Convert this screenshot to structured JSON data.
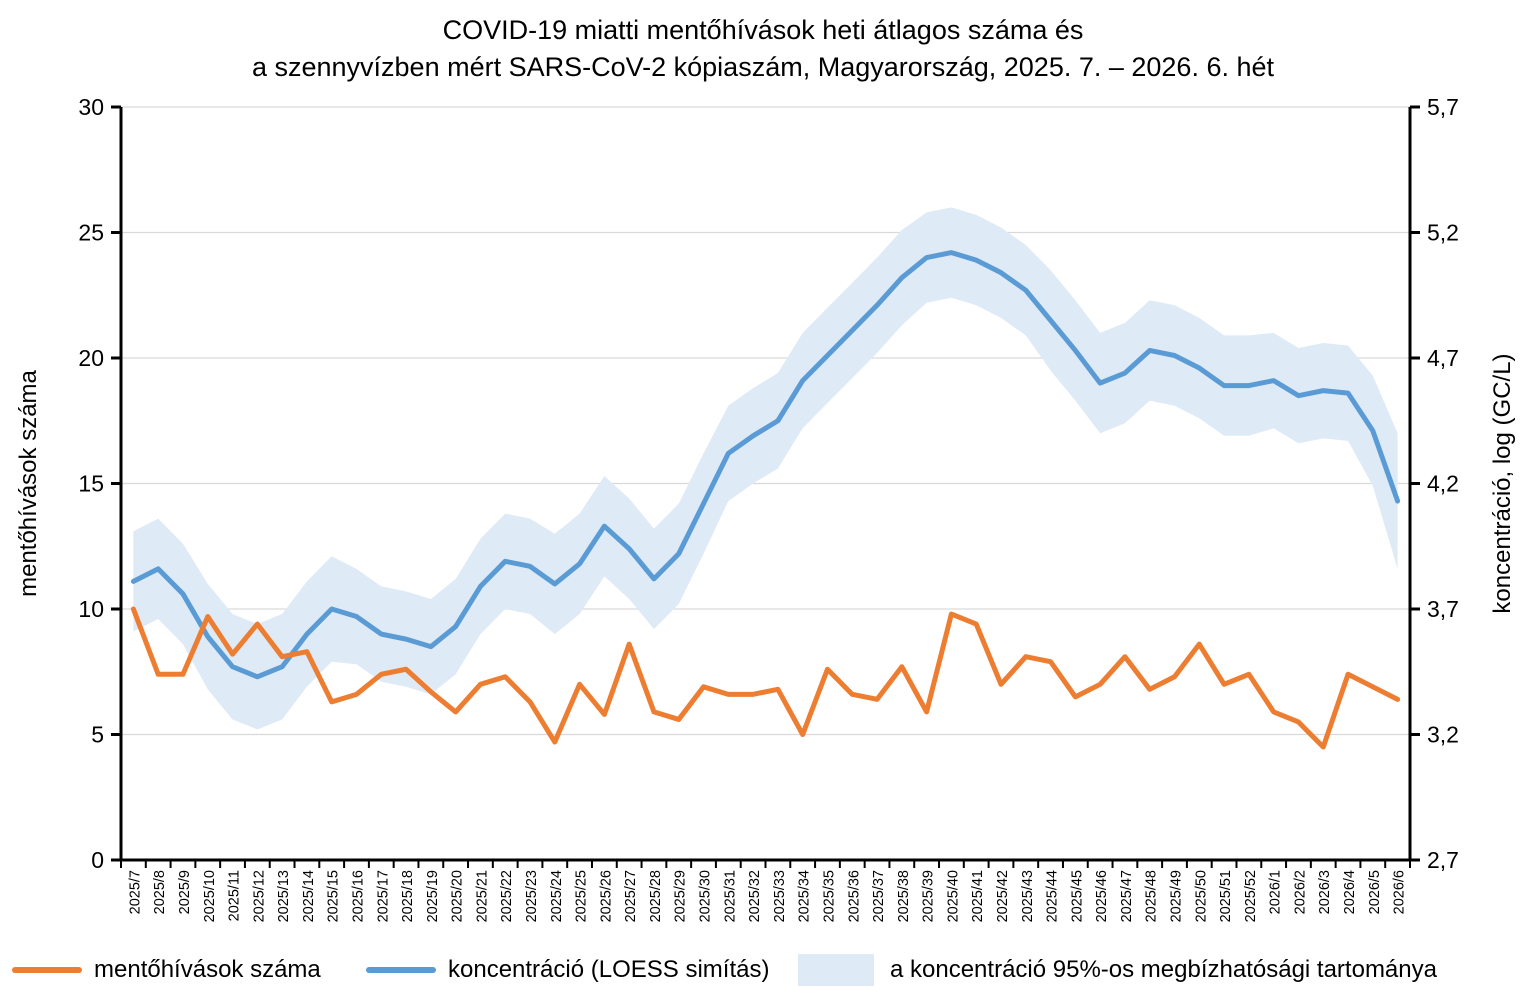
{
  "title": {
    "line1": "COVID-19 miatti mentőhívások heti átlagos száma és",
    "line2": "a szennyvízben mért SARS-CoV-2 kópiaszám, Magyarország, 2025. 7. – 2026. 6. hét"
  },
  "colors": {
    "calls": "#ED7D31",
    "loess": "#5B9BD5",
    "band": "#DEEBF7",
    "grid": "#D9D9D9",
    "axis": "#000000",
    "text": "#000000"
  },
  "chart_data": {
    "type": "line",
    "title": "COVID-19 miatti mentőhívások heti átlagos száma és a szennyvízben mért SARS-CoV-2 kópiaszám, Magyarország, 2025. 7. – 2026. 6. hét",
    "x_labels": [
      "2025/7",
      "2025/8",
      "2025/9",
      "2025/10",
      "2025/11",
      "2025/12",
      "2025/13",
      "2025/14",
      "2025/15",
      "2025/16",
      "2025/17",
      "2025/18",
      "2025/19",
      "2025/20",
      "2025/21",
      "2025/22",
      "2025/23",
      "2025/24",
      "2025/25",
      "2025/26",
      "2025/27",
      "2025/28",
      "2025/29",
      "2025/30",
      "2025/31",
      "2025/32",
      "2025/33",
      "2025/34",
      "2025/35",
      "2025/36",
      "2025/37",
      "2025/38",
      "2025/39",
      "2025/40",
      "2025/41",
      "2025/42",
      "2025/43",
      "2025/44",
      "2025/45",
      "2025/46",
      "2025/47",
      "2025/48",
      "2025/49",
      "2025/50",
      "2025/51",
      "2025/52",
      "2026/1",
      "2026/2",
      "2026/3",
      "2026/4",
      "2026/5",
      "2026/6"
    ],
    "left_axis": {
      "title": "mentőhívások száma",
      "min": 0,
      "max": 30,
      "ticks": [
        0,
        5,
        10,
        15,
        20,
        25,
        30
      ],
      "tick_labels": [
        "0",
        "5",
        "10",
        "15",
        "20",
        "25",
        "30"
      ]
    },
    "right_axis": {
      "title": "koncentráció, log (GC/L)",
      "min": 2.7,
      "max": 5.7,
      "ticks": [
        2.7,
        3.2,
        3.7,
        4.2,
        4.7,
        5.2,
        5.7
      ],
      "tick_labels": [
        "2,7",
        "3,2",
        "3,7",
        "4,2",
        "4,7",
        "5,2",
        "5,7"
      ]
    },
    "grid": true,
    "legend_position": "bottom",
    "series": [
      {
        "name": "mentőhívások száma",
        "axis": "left",
        "color": "#ED7D31",
        "values": [
          10.0,
          7.4,
          7.4,
          9.7,
          8.2,
          9.4,
          8.1,
          8.3,
          6.3,
          6.6,
          7.4,
          7.6,
          6.7,
          5.9,
          7.0,
          7.3,
          6.3,
          4.7,
          7.0,
          5.8,
          8.6,
          5.9,
          5.6,
          6.9,
          6.6,
          6.6,
          6.8,
          5.0,
          7.6,
          6.6,
          6.4,
          7.7,
          5.9,
          9.8,
          9.4,
          7.0,
          8.1,
          7.9,
          6.5,
          7.0,
          8.1,
          6.8,
          7.3,
          8.6,
          7.0,
          7.4,
          5.9,
          5.5,
          4.5,
          7.4,
          6.9,
          6.4
        ]
      },
      {
        "name": "koncentráció (LOESS simítás)",
        "axis": "right",
        "color": "#5B9BD5",
        "values": [
          3.81,
          3.86,
          3.76,
          3.59,
          3.47,
          3.43,
          3.47,
          3.6,
          3.7,
          3.67,
          3.6,
          3.58,
          3.55,
          3.63,
          3.79,
          3.89,
          3.87,
          3.8,
          3.88,
          4.03,
          3.94,
          3.82,
          3.92,
          4.12,
          4.32,
          4.39,
          4.45,
          4.61,
          4.71,
          4.81,
          4.91,
          5.02,
          5.1,
          5.12,
          5.09,
          5.04,
          4.97,
          4.85,
          4.73,
          4.6,
          4.64,
          4.73,
          4.71,
          4.66,
          4.59,
          4.59,
          4.61,
          4.55,
          4.57,
          4.56,
          4.41,
          4.13
        ]
      }
    ],
    "band": {
      "name": "a koncentráció 95%-os megbízhatósági tartománya",
      "axis": "right",
      "color": "#DEEBF7",
      "upper": [
        4.01,
        4.06,
        3.96,
        3.8,
        3.68,
        3.64,
        3.68,
        3.81,
        3.91,
        3.86,
        3.79,
        3.77,
        3.74,
        3.82,
        3.98,
        4.08,
        4.06,
        4.0,
        4.08,
        4.23,
        4.14,
        4.02,
        4.12,
        4.32,
        4.51,
        4.58,
        4.64,
        4.8,
        4.9,
        5.0,
        5.1,
        5.21,
        5.28,
        5.3,
        5.27,
        5.22,
        5.15,
        5.05,
        4.93,
        4.8,
        4.84,
        4.93,
        4.91,
        4.86,
        4.79,
        4.79,
        4.8,
        4.74,
        4.76,
        4.75,
        4.63,
        4.4
      ],
      "lower": [
        3.61,
        3.66,
        3.56,
        3.38,
        3.26,
        3.22,
        3.26,
        3.39,
        3.49,
        3.48,
        3.41,
        3.39,
        3.36,
        3.44,
        3.6,
        3.7,
        3.68,
        3.6,
        3.68,
        3.83,
        3.74,
        3.62,
        3.72,
        3.92,
        4.13,
        4.2,
        4.26,
        4.42,
        4.52,
        4.62,
        4.72,
        4.83,
        4.92,
        4.94,
        4.91,
        4.86,
        4.79,
        4.65,
        4.53,
        4.4,
        4.44,
        4.53,
        4.51,
        4.46,
        4.39,
        4.39,
        4.42,
        4.36,
        4.38,
        4.37,
        4.19,
        3.86
      ]
    }
  }
}
